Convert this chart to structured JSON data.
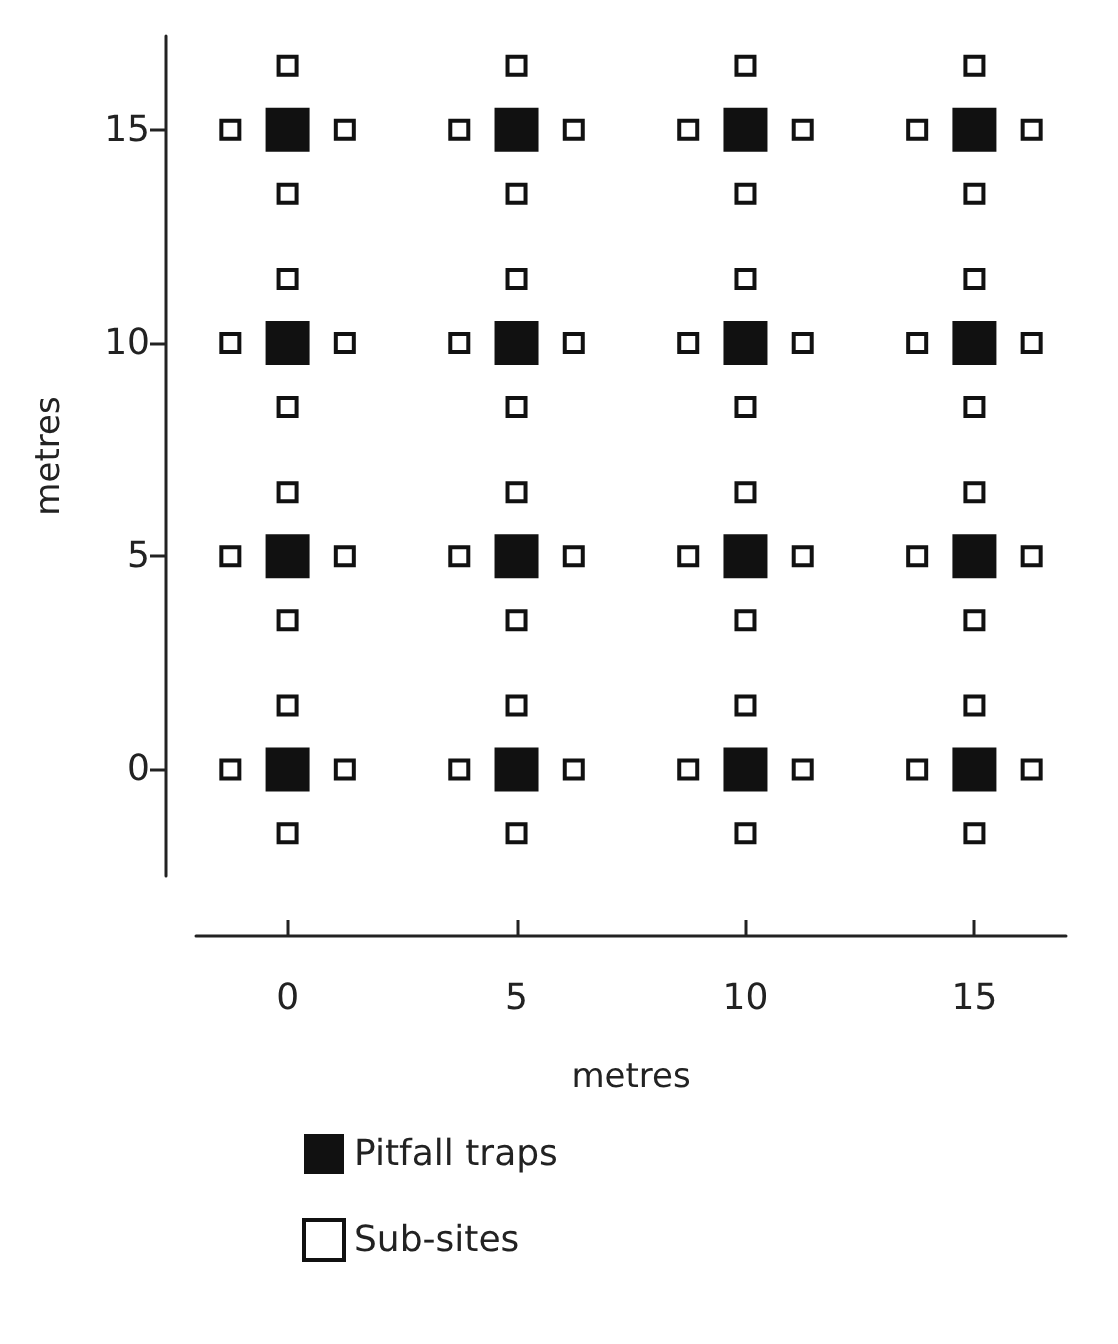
{
  "chart_data": {
    "type": "scatter",
    "xlabel": "metres",
    "ylabel": "metres",
    "xlim": [
      -2,
      17
    ],
    "ylim": [
      -2.5,
      17.2
    ],
    "xticks": [
      0,
      5,
      10,
      15
    ],
    "yticks": [
      0,
      5,
      10,
      15
    ],
    "grid": false,
    "legend": "bottom left",
    "marker": "square",
    "series": [
      {
        "name": "Pitfall traps",
        "color": "#111111",
        "x": [
          0,
          5,
          10,
          15,
          0,
          5,
          10,
          15,
          0,
          5,
          10,
          15,
          0,
          5,
          10,
          15
        ],
        "values": [
          15,
          15,
          15,
          15,
          10,
          10,
          10,
          10,
          5,
          5,
          5,
          5,
          0,
          0,
          0,
          0
        ]
      },
      {
        "name": "Sub-sites",
        "color": "#ffffff",
        "x": [
          -1.25,
          1.25,
          0,
          0,
          3.75,
          6.25,
          5,
          5,
          8.75,
          11.25,
          10,
          10,
          13.75,
          16.25,
          15,
          15,
          -1.25,
          1.25,
          0,
          0,
          3.75,
          6.25,
          5,
          5,
          8.75,
          11.25,
          10,
          10,
          13.75,
          16.25,
          15,
          15,
          -1.25,
          1.25,
          0,
          0,
          3.75,
          6.25,
          5,
          5,
          8.75,
          11.25,
          10,
          10,
          13.75,
          16.25,
          15,
          15,
          -1.25,
          1.25,
          0,
          0,
          3.75,
          6.25,
          5,
          5,
          8.75,
          11.25,
          10,
          10,
          13.75,
          16.25,
          15,
          15
        ],
        "values": [
          15,
          15,
          16.5,
          13.5,
          15,
          15,
          16.5,
          13.5,
          15,
          15,
          16.5,
          13.5,
          15,
          15,
          16.5,
          13.5,
          10,
          10,
          11.5,
          8.5,
          10,
          10,
          11.5,
          8.5,
          10,
          10,
          11.5,
          8.5,
          10,
          10,
          11.5,
          8.5,
          5,
          5,
          6.5,
          3.5,
          5,
          5,
          6.5,
          3.5,
          5,
          5,
          6.5,
          3.5,
          5,
          5,
          6.5,
          3.5,
          0,
          0,
          1.5,
          -1.5,
          0,
          0,
          1.5,
          -1.5,
          0,
          0,
          1.5,
          -1.5,
          0,
          0,
          1.5,
          -1.5
        ]
      }
    ]
  }
}
